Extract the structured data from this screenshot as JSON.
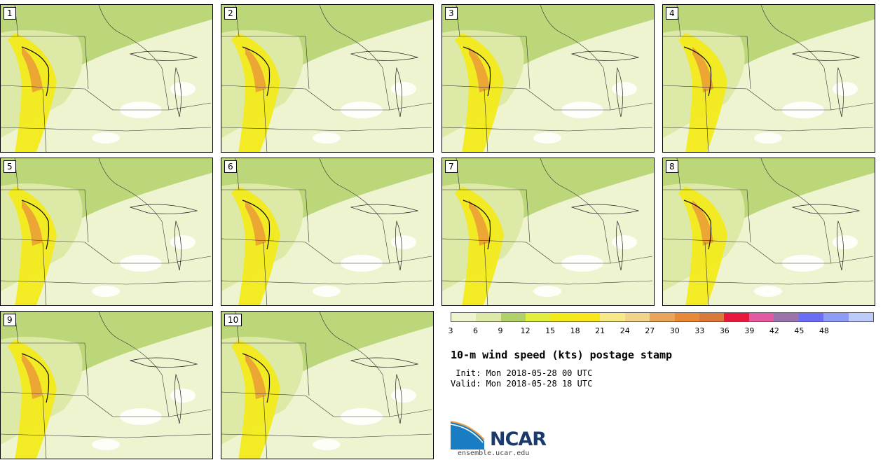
{
  "panels": [
    {
      "label": "1"
    },
    {
      "label": "2"
    },
    {
      "label": "3"
    },
    {
      "label": "4"
    },
    {
      "label": "5"
    },
    {
      "label": "6"
    },
    {
      "label": "7"
    },
    {
      "label": "8"
    },
    {
      "label": "9"
    },
    {
      "label": "10"
    }
  ],
  "colorbar": {
    "ticks": [
      "3",
      "6",
      "9",
      "12",
      "15",
      "18",
      "21",
      "24",
      "27",
      "30",
      "33",
      "36",
      "39",
      "42",
      "45",
      "48"
    ],
    "colors": [
      "#eef4d0",
      "#dde9a6",
      "#b2d16b",
      "#e0ee3c",
      "#f2ea1a",
      "#f7e71c",
      "#f7ea86",
      "#f2d38a",
      "#eba55a",
      "#e8893a",
      "#d97a3a",
      "#e8173c",
      "#e25aa0",
      "#9a74ab",
      "#6b6df5",
      "#8f9cf5",
      "#bccbf7"
    ]
  },
  "title": "10-m wind speed (kts) postage stamp",
  "init_text": " Init: Mon 2018-05-28 00 UTC",
  "valid_text": "Valid: Mon 2018-05-28 18 UTC",
  "logo_text": "NCAR",
  "logo_url": "ensemble.ucar.edu"
}
